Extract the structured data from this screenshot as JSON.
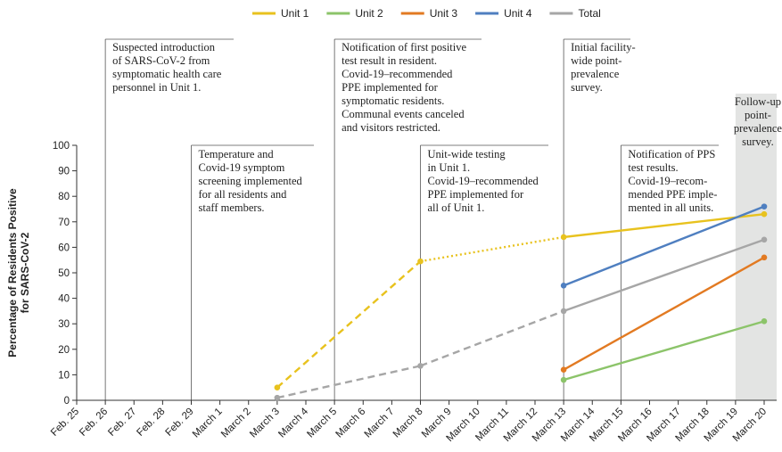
{
  "chart_data": {
    "type": "line",
    "ylabel": [
      "Percentage of Residents Positive",
      "for SARS-CoV-2"
    ],
    "ylim": [
      0,
      100
    ],
    "yticks": [
      "0",
      "10",
      "20",
      "30",
      "40",
      "50",
      "60",
      "70",
      "80",
      "90",
      "100"
    ],
    "categories": [
      "Feb. 25",
      "Feb. 26",
      "Feb. 27",
      "Feb. 28",
      "Feb. 29",
      "March 1",
      "March 2",
      "March 3",
      "March 4",
      "March 5",
      "March 6",
      "March 7",
      "March 8",
      "March 9",
      "March 10",
      "March 11",
      "March 12",
      "March 13",
      "March 14",
      "March 15",
      "March 16",
      "March 17",
      "March 18",
      "March 19",
      "March 20"
    ],
    "shaded_range": [
      "March 19",
      "March 20"
    ],
    "series": [
      {
        "name": "Unit 1",
        "color": "#e8c21e",
        "points": [
          {
            "x": 7,
            "y": 5,
            "style": "dashed"
          },
          {
            "x": 12,
            "y": 54.5,
            "style": "dotted"
          },
          {
            "x": 17,
            "y": 64,
            "style": "solid"
          },
          {
            "x": 24,
            "y": 73,
            "style": "solid"
          }
        ]
      },
      {
        "name": "Unit 2",
        "color": "#8cc46a",
        "points": [
          {
            "x": 17,
            "y": 8,
            "style": "solid"
          },
          {
            "x": 24,
            "y": 31,
            "style": "solid"
          }
        ]
      },
      {
        "name": "Unit 3",
        "color": "#e27a22",
        "points": [
          {
            "x": 17,
            "y": 12,
            "style": "solid"
          },
          {
            "x": 24,
            "y": 56,
            "style": "solid"
          }
        ]
      },
      {
        "name": "Unit 4",
        "color": "#4f7fc0",
        "points": [
          {
            "x": 17,
            "y": 45,
            "style": "solid"
          },
          {
            "x": 24,
            "y": 76,
            "style": "solid"
          }
        ]
      },
      {
        "name": "Total",
        "color": "#a6a6a6",
        "points": [
          {
            "x": 7,
            "y": 1,
            "style": "dashed"
          },
          {
            "x": 12,
            "y": 13.5,
            "style": "dashed"
          },
          {
            "x": 17,
            "y": 35,
            "style": "solid"
          },
          {
            "x": 24,
            "y": 63,
            "style": "solid"
          }
        ]
      }
    ],
    "annotations": [
      {
        "id": "intro",
        "at": "Feb. 26",
        "lines": [
          "Suspected introduction",
          "of SARS-CoV-2 from",
          "symptomatic health care",
          "personnel in Unit 1."
        ]
      },
      {
        "id": "screening",
        "at": "Feb. 29",
        "lines": [
          "Temperature and",
          "Covid-19 symptom",
          "screening implemented",
          "for all residents and",
          "staff members."
        ]
      },
      {
        "id": "first-positive",
        "at": "March 5",
        "lines": [
          "Notification of first positive",
          "test result in resident.",
          "Covid-19–recommended",
          "PPE implemented for",
          "symptomatic residents.",
          "Communal events canceled",
          "and visitors restricted."
        ]
      },
      {
        "id": "unit-testing",
        "at": "March 8",
        "lines": [
          "Unit-wide testing",
          "in Unit 1.",
          "Covid-19–recommended",
          "PPE implemented for",
          "all of Unit 1."
        ]
      },
      {
        "id": "pps-initial",
        "at": "March 13",
        "lines": [
          "Initial facility-",
          "wide point-",
          "prevalence",
          "survey."
        ]
      },
      {
        "id": "pps-results",
        "at": "March 15",
        "lines": [
          "Notification of PPS",
          "test results.",
          "Covid-19–recom-",
          "mended PPE imple-",
          "mented in all units."
        ]
      },
      {
        "id": "follow-up",
        "at": "March 19",
        "lines": [
          "Follow-up",
          "point-",
          "prevalence",
          "survey."
        ]
      }
    ]
  }
}
